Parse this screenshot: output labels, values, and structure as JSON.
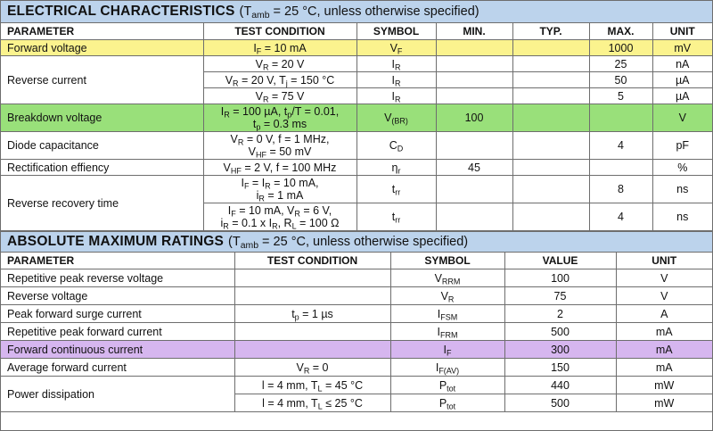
{
  "electrical": {
    "title": "ELECTRICAL CHARACTERISTICS",
    "condition_prefix": "(T",
    "condition_sub": "amb",
    "condition_suffix": " = 25 °C, unless otherwise specified)",
    "headers": [
      "PARAMETER",
      "TEST CONDITION",
      "SYMBOL",
      "MIN.",
      "TYP.",
      "MAX.",
      "UNIT"
    ],
    "rows": {
      "forward_voltage": {
        "param": "Forward voltage",
        "cond": "I<sub>F</sub> = 10 mA",
        "sym": "V<sub>F</sub>",
        "min": "",
        "typ": "",
        "max": "1000",
        "unit": "mV"
      },
      "reverse_current": {
        "param": "Reverse current",
        "sub": [
          {
            "cond": "V<sub>R</sub> = 20 V",
            "sym": "I<sub>R</sub>",
            "max": "25",
            "unit": "nA"
          },
          {
            "cond": "V<sub>R</sub> = 20 V, T<sub>j</sub> = 150 °C",
            "sym": "I<sub>R</sub>",
            "max": "50",
            "unit": "µA"
          },
          {
            "cond": "V<sub>R</sub> = 75 V",
            "sym": "I<sub>R</sub>",
            "max": "5",
            "unit": "µA"
          }
        ]
      },
      "breakdown_voltage": {
        "param": "Breakdown voltage",
        "cond1": "I<sub>R</sub> = 100 µA, t<sub>p</sub>/T = 0.01,",
        "cond2": "t<sub>p</sub> = 0.3 ms",
        "sym": "V<sub>(BR)</sub>",
        "min": "100",
        "unit": "V"
      },
      "diode_capacitance": {
        "param": "Diode capacitance",
        "cond1": "V<sub>R</sub> = 0 V, f = 1 MHz,",
        "cond2": "V<sub>HF</sub> = 50 mV",
        "sym": "C<sub>D</sub>",
        "max": "4",
        "unit": "pF"
      },
      "rectification": {
        "param": "Rectification effiency",
        "cond": "V<sub>HF</sub> = 2 V, f = 100 MHz",
        "sym": "η<sub>r</sub>",
        "min": "45",
        "unit": "%"
      },
      "reverse_recovery": {
        "param": "Reverse recovery time",
        "sub": [
          {
            "cond1": "I<sub>F</sub> = I<sub>R</sub> = 10 mA,",
            "cond2": "i<sub>R</sub> = 1 mA",
            "sym": "t<sub>rr</sub>",
            "max": "8",
            "unit": "ns"
          },
          {
            "cond1": "I<sub>F</sub> = 10 mA, V<sub>R</sub> = 6 V,",
            "cond2": "i<sub>R</sub> = 0.1 x I<sub>R</sub>, R<sub>L</sub> = 100 Ω",
            "sym": "t<sub>rr</sub>",
            "max": "4",
            "unit": "ns"
          }
        ]
      }
    }
  },
  "absolute": {
    "title": "ABSOLUTE MAXIMUM RATINGS",
    "condition_prefix": "(T",
    "condition_sub": "amb",
    "condition_suffix": " = 25 °C, unless otherwise specified)",
    "headers": [
      "PARAMETER",
      "TEST CONDITION",
      "SYMBOL",
      "VALUE",
      "UNIT"
    ],
    "rows": [
      {
        "param": "Repetitive peak reverse voltage",
        "cond": "",
        "sym": "V<sub>RRM</sub>",
        "value": "100",
        "unit": "V"
      },
      {
        "param": "Reverse voltage",
        "cond": "",
        "sym": "V<sub>R</sub>",
        "value": "75",
        "unit": "V"
      },
      {
        "param": "Peak forward surge current",
        "cond": "t<sub>p</sub> = 1 µs",
        "sym": "I<sub>FSM</sub>",
        "value": "2",
        "unit": "A"
      },
      {
        "param": "Repetitive peak forward current",
        "cond": "",
        "sym": "I<sub>FRM</sub>",
        "value": "500",
        "unit": "mA"
      },
      {
        "param": "Forward continuous current",
        "cond": "",
        "sym": "I<sub>F</sub>",
        "value": "300",
        "unit": "mA"
      },
      {
        "param": "Average forward current",
        "cond": "V<sub>R</sub> = 0",
        "sym": "I<sub>F(AV)</sub>",
        "value": "150",
        "unit": "mA"
      }
    ],
    "power": {
      "param": "Power dissipation",
      "sub": [
        {
          "cond": "l = 4 mm, T<sub>L</sub> = 45 °C",
          "sym": "P<sub>tot</sub>",
          "value": "440",
          "unit": "mW"
        },
        {
          "cond": "l = 4 mm, T<sub>L</sub> ≤ 25 °C",
          "sym": "P<sub>tot</sub>",
          "value": "500",
          "unit": "mW"
        }
      ]
    }
  },
  "colors": {
    "header_band": "#bcd3ec",
    "highlight_forward_voltage": "#fbf38e",
    "highlight_breakdown": "#99e07a",
    "highlight_forward_continuous": "#d6b6ef"
  }
}
